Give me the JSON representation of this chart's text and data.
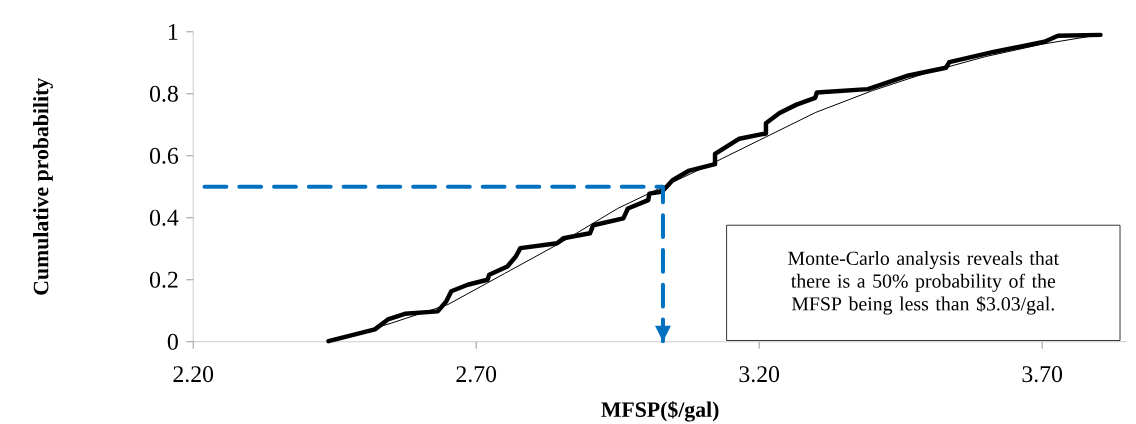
{
  "chart_data": {
    "type": "line",
    "xlabel": "MFSP($/gal)",
    "ylabel": "Cumulative probability",
    "xlim": [
      2.2,
      3.85
    ],
    "ylim": [
      0,
      1
    ],
    "xticks": [
      {
        "value": 2.2,
        "label": "2.20"
      },
      {
        "value": 2.7,
        "label": "2.70"
      },
      {
        "value": 3.2,
        "label": "3.20"
      },
      {
        "value": 3.7,
        "label": "3.70"
      }
    ],
    "yticks": [
      0,
      0.2,
      0.4,
      0.6,
      0.8,
      1
    ],
    "grid": false,
    "legend": false,
    "series": [
      {
        "color": "#000000",
        "line_style": "solid",
        "x": [
          2.439,
          2.521,
          2.544,
          2.574,
          2.632,
          2.647,
          2.656,
          2.685,
          2.72,
          2.723,
          2.755,
          2.77,
          2.778,
          2.843,
          2.854,
          2.901,
          2.907,
          2.96,
          2.968,
          3.004,
          3.006,
          3.024,
          3.032,
          3.047,
          3.075,
          3.122,
          3.122,
          3.165,
          3.212,
          3.212,
          3.236,
          3.266,
          3.299,
          3.302,
          3.392,
          3.464,
          3.53,
          3.536,
          3.614,
          3.704,
          3.728,
          3.803
        ],
        "values": [
          0.002,
          0.04,
          0.072,
          0.09,
          0.098,
          0.13,
          0.163,
          0.184,
          0.2,
          0.216,
          0.243,
          0.275,
          0.302,
          0.318,
          0.334,
          0.35,
          0.376,
          0.398,
          0.43,
          0.457,
          0.478,
          0.483,
          0.491,
          0.521,
          0.551,
          0.573,
          0.606,
          0.655,
          0.672,
          0.705,
          0.738,
          0.765,
          0.787,
          0.804,
          0.815,
          0.859,
          0.884,
          0.902,
          0.935,
          0.968,
          0.987,
          0.99
        ]
      },
      {
        "color": "#000000",
        "line_style": "solid",
        "x": [
          2.44,
          2.55,
          2.65,
          2.75,
          2.85,
          2.95,
          3.03,
          3.1,
          3.2,
          3.3,
          3.4,
          3.5,
          3.6,
          3.7,
          3.8
        ],
        "values": [
          0.0,
          0.06,
          0.12,
          0.22,
          0.32,
          0.43,
          0.5,
          0.56,
          0.65,
          0.74,
          0.81,
          0.87,
          0.92,
          0.96,
          0.99
        ]
      },
      {
        "color": "#0070c0",
        "line_style": "dashed",
        "x": [
          2.22,
          3.03,
          3.03
        ],
        "values": [
          0.5,
          0.5,
          0.0
        ]
      }
    ],
    "annotations": [
      "Monte-Carlo analysis reveals that there is a 50% probability of the MFSP being less than $3.03/gal."
    ]
  }
}
